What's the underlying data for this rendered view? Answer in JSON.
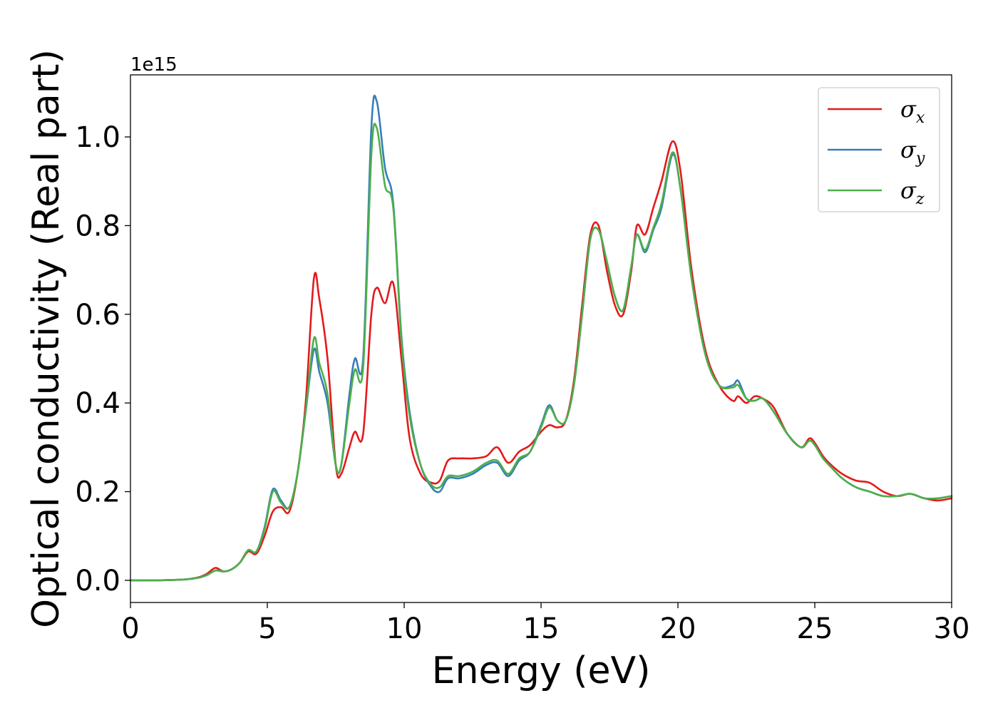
{
  "chart_data": {
    "type": "line",
    "xlabel": "Energy (eV)",
    "ylabel": "Optical conductivity (Real part)",
    "y_offset_label": "1e15",
    "xlim": [
      0,
      30
    ],
    "ylim": [
      -0.05,
      1.14
    ],
    "x_ticks": [
      0,
      5,
      10,
      15,
      20,
      25,
      30
    ],
    "x_tick_labels": [
      "0",
      "5",
      "10",
      "15",
      "20",
      "25",
      "30"
    ],
    "y_ticks": [
      0.0,
      0.2,
      0.4,
      0.6,
      0.8,
      1.0
    ],
    "y_tick_labels": [
      "0.0",
      "0.2",
      "0.4",
      "0.6",
      "0.8",
      "1.0"
    ],
    "grid": false,
    "legend_position": "top-right",
    "series": [
      {
        "name": "σ",
        "subscript": "x",
        "color": "#e41a1c",
        "x": [
          0,
          1,
          2,
          2.5,
          2.8,
          3.1,
          3.4,
          3.7,
          4.0,
          4.3,
          4.6,
          4.9,
          5.2,
          5.5,
          5.8,
          6.1,
          6.4,
          6.7,
          6.9,
          7.2,
          7.5,
          7.7,
          8.0,
          8.2,
          8.5,
          8.8,
          9.0,
          9.3,
          9.6,
          9.9,
          10.2,
          10.6,
          11.0,
          11.3,
          11.6,
          12.0,
          12.5,
          13.0,
          13.4,
          13.8,
          14.2,
          14.6,
          15.0,
          15.3,
          15.6,
          15.9,
          16.2,
          16.5,
          16.8,
          17.1,
          17.4,
          17.7,
          18.0,
          18.3,
          18.5,
          18.8,
          19.1,
          19.4,
          19.8,
          20.1,
          20.5,
          21.0,
          21.5,
          22.0,
          22.2,
          22.5,
          22.8,
          23.1,
          23.5,
          24.0,
          24.5,
          24.8,
          25.0,
          25.3,
          25.6,
          26.0,
          26.5,
          27.0,
          27.5,
          28.0,
          28.5,
          29.0,
          29.5,
          30.0
        ],
        "y": [
          0.0,
          0.0,
          0.002,
          0.007,
          0.015,
          0.028,
          0.02,
          0.025,
          0.04,
          0.065,
          0.06,
          0.1,
          0.155,
          0.165,
          0.155,
          0.24,
          0.4,
          0.68,
          0.635,
          0.5,
          0.26,
          0.24,
          0.3,
          0.335,
          0.33,
          0.6,
          0.66,
          0.625,
          0.67,
          0.5,
          0.32,
          0.24,
          0.22,
          0.225,
          0.27,
          0.275,
          0.275,
          0.28,
          0.3,
          0.265,
          0.29,
          0.305,
          0.335,
          0.35,
          0.345,
          0.36,
          0.45,
          0.62,
          0.78,
          0.8,
          0.7,
          0.62,
          0.6,
          0.7,
          0.8,
          0.78,
          0.84,
          0.9,
          0.99,
          0.92,
          0.7,
          0.52,
          0.44,
          0.405,
          0.415,
          0.4,
          0.415,
          0.41,
          0.39,
          0.33,
          0.3,
          0.32,
          0.31,
          0.28,
          0.26,
          0.24,
          0.225,
          0.22,
          0.2,
          0.19,
          0.195,
          0.185,
          0.18,
          0.185
        ]
      },
      {
        "name": "σ",
        "subscript": "y",
        "color": "#377eb8",
        "x": [
          0,
          1,
          2,
          2.5,
          2.8,
          3.1,
          3.4,
          3.7,
          4.0,
          4.3,
          4.6,
          4.9,
          5.2,
          5.5,
          5.8,
          6.1,
          6.4,
          6.7,
          6.9,
          7.2,
          7.5,
          7.7,
          8.0,
          8.2,
          8.5,
          8.8,
          9.0,
          9.3,
          9.6,
          9.9,
          10.2,
          10.6,
          11.0,
          11.3,
          11.6,
          12.0,
          12.5,
          13.0,
          13.4,
          13.8,
          14.2,
          14.6,
          15.0,
          15.3,
          15.6,
          15.9,
          16.2,
          16.5,
          16.8,
          17.1,
          17.4,
          17.7,
          18.0,
          18.3,
          18.5,
          18.8,
          19.1,
          19.4,
          19.8,
          20.1,
          20.5,
          21.0,
          21.5,
          22.0,
          22.2,
          22.5,
          22.8,
          23.1,
          23.5,
          24.0,
          24.5,
          24.8,
          25.0,
          25.3,
          25.6,
          26.0,
          26.5,
          27.0,
          27.5,
          28.0,
          28.5,
          29.0,
          29.5,
          30.0
        ],
        "y": [
          0.0,
          0.0,
          0.002,
          0.006,
          0.012,
          0.022,
          0.02,
          0.025,
          0.04,
          0.068,
          0.065,
          0.12,
          0.205,
          0.18,
          0.165,
          0.24,
          0.38,
          0.52,
          0.47,
          0.4,
          0.26,
          0.26,
          0.42,
          0.5,
          0.5,
          1.02,
          1.08,
          0.93,
          0.85,
          0.55,
          0.38,
          0.26,
          0.21,
          0.2,
          0.23,
          0.23,
          0.24,
          0.26,
          0.265,
          0.235,
          0.27,
          0.29,
          0.35,
          0.395,
          0.36,
          0.36,
          0.44,
          0.6,
          0.77,
          0.79,
          0.72,
          0.64,
          0.61,
          0.71,
          0.78,
          0.74,
          0.79,
          0.84,
          0.96,
          0.88,
          0.68,
          0.51,
          0.44,
          0.44,
          0.45,
          0.41,
          0.405,
          0.41,
          0.38,
          0.33,
          0.3,
          0.315,
          0.305,
          0.275,
          0.255,
          0.23,
          0.21,
          0.2,
          0.19,
          0.19,
          0.195,
          0.185,
          0.185,
          0.19
        ]
      },
      {
        "name": "σ",
        "subscript": "z",
        "color": "#4daf4a",
        "x": [
          0,
          1,
          2,
          2.5,
          2.8,
          3.1,
          3.4,
          3.7,
          4.0,
          4.3,
          4.6,
          4.9,
          5.2,
          5.5,
          5.8,
          6.1,
          6.4,
          6.7,
          6.9,
          7.2,
          7.5,
          7.7,
          8.0,
          8.2,
          8.5,
          8.8,
          9.0,
          9.3,
          9.6,
          9.9,
          10.2,
          10.6,
          11.0,
          11.3,
          11.6,
          12.0,
          12.5,
          13.0,
          13.4,
          13.8,
          14.2,
          14.6,
          15.0,
          15.3,
          15.6,
          15.9,
          16.2,
          16.5,
          16.8,
          17.1,
          17.4,
          17.7,
          18.0,
          18.3,
          18.5,
          18.8,
          19.1,
          19.4,
          19.8,
          20.1,
          20.5,
          21.0,
          21.5,
          22.0,
          22.2,
          22.5,
          22.8,
          23.1,
          23.5,
          24.0,
          24.5,
          24.8,
          25.0,
          25.3,
          25.6,
          26.0,
          26.5,
          27.0,
          27.5,
          28.0,
          28.5,
          29.0,
          29.5,
          30.0
        ],
        "y": [
          0.0,
          0.0,
          0.002,
          0.006,
          0.012,
          0.022,
          0.02,
          0.025,
          0.04,
          0.068,
          0.065,
          0.115,
          0.2,
          0.175,
          0.165,
          0.24,
          0.38,
          0.545,
          0.49,
          0.42,
          0.26,
          0.26,
          0.4,
          0.475,
          0.48,
          0.96,
          1.02,
          0.89,
          0.84,
          0.54,
          0.37,
          0.26,
          0.215,
          0.21,
          0.235,
          0.235,
          0.245,
          0.265,
          0.27,
          0.24,
          0.275,
          0.29,
          0.345,
          0.39,
          0.36,
          0.36,
          0.44,
          0.6,
          0.77,
          0.79,
          0.72,
          0.64,
          0.61,
          0.71,
          0.78,
          0.745,
          0.795,
          0.85,
          0.965,
          0.88,
          0.68,
          0.51,
          0.44,
          0.435,
          0.44,
          0.41,
          0.405,
          0.41,
          0.38,
          0.33,
          0.3,
          0.315,
          0.305,
          0.275,
          0.255,
          0.23,
          0.21,
          0.2,
          0.19,
          0.19,
          0.195,
          0.185,
          0.185,
          0.19
        ]
      }
    ]
  }
}
